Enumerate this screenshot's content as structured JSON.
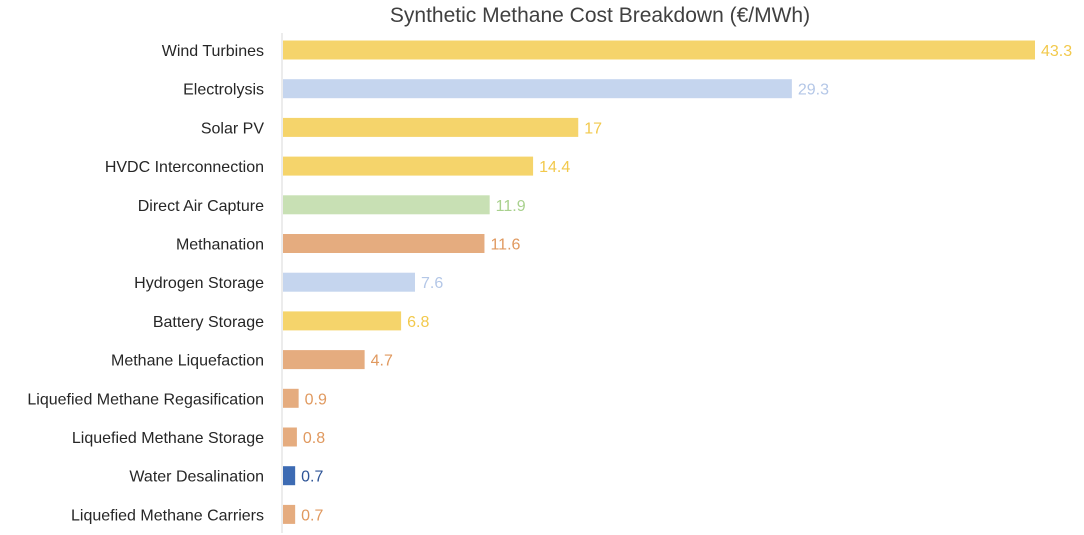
{
  "chart_data": {
    "type": "bar",
    "orientation": "horizontal",
    "title": "Synthetic Methane Cost Breakdown (€/MWh)",
    "xlabel": "",
    "ylabel": "",
    "xlim": [
      0,
      43.3
    ],
    "grid": false,
    "legend": "none",
    "data_labels": true,
    "categories": [
      "Wind Turbines",
      "Electrolysis",
      "Solar PV",
      "HVDC Interconnection",
      "Direct Air Capture",
      "Methanation",
      "Hydrogen Storage",
      "Battery Storage",
      "Methane Liquefaction",
      "Liquefied Methane Regasification",
      "Liquefied Methane Storage",
      "Water Desalination",
      "Liquefied Methane Carriers"
    ],
    "values": [
      43.3,
      29.3,
      17,
      14.4,
      11.9,
      11.6,
      7.6,
      6.8,
      4.7,
      0.9,
      0.8,
      0.7,
      0.7
    ],
    "value_labels": [
      "43.3",
      "29.3",
      "17",
      "14.4",
      "11.9",
      "11.6",
      "7.6",
      "6.8",
      "4.7",
      "0.9",
      "0.8",
      "0.7",
      "0.7"
    ],
    "bar_colors": [
      "#f5d46b",
      "#c5d5ee",
      "#f5d46b",
      "#f5d46b",
      "#c8e0b4",
      "#e5ac7f",
      "#c5d5ee",
      "#f5d46b",
      "#e5ac7f",
      "#e5ac7f",
      "#e5ac7f",
      "#3d6bb3",
      "#e5ac7f"
    ],
    "label_colors": [
      "#f2c94c",
      "#b4c7e7",
      "#f2c94c",
      "#f2c94c",
      "#a9d18e",
      "#e0995f",
      "#b4c7e7",
      "#f2c94c",
      "#e0995f",
      "#e0995f",
      "#e0995f",
      "#2f5597",
      "#e0995f"
    ],
    "axis_line_color": "#d9d9d9"
  }
}
